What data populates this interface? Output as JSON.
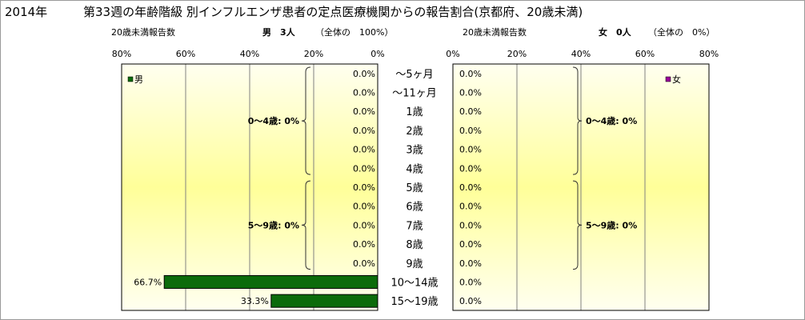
{
  "title": {
    "year": "2014年",
    "main": "第33週の年齢階級 別インフルエンザ患者の定点医療機関からの報告割合(京都府、20歳未満)"
  },
  "left_header": {
    "caption": "20歳未満報告数",
    "summary": "男　3人",
    "note": "（全体の　100%）"
  },
  "right_header": {
    "caption": "20歳未満報告数",
    "summary": "女　0人",
    "note": "（全体の　0%）"
  },
  "colors": {
    "male_bar": "#0b6b0b",
    "female_bar": "#990099",
    "gradient_edge": "#fffff0",
    "gradient_center": "#ffff99",
    "grid": "#808080",
    "axis": "#000000"
  },
  "chart_data": [
    {
      "type": "bar",
      "orientation": "horizontal",
      "direction": "right-to-left",
      "categories": [
        "〜5ヶ月",
        "〜11ヶ月",
        "1歳",
        "2歳",
        "3歳",
        "4歳",
        "5歳",
        "6歳",
        "7歳",
        "8歳",
        "9歳",
        "10〜14歳",
        "15〜19歳"
      ],
      "series": [
        {
          "name": "男",
          "values": [
            0,
            0,
            0,
            0,
            0,
            0,
            0,
            0,
            0,
            0,
            0,
            66.7,
            33.3
          ],
          "labels": [
            "0.0%",
            "0.0%",
            "0.0%",
            "0.0%",
            "0.0%",
            "0.0%",
            "0.0%",
            "0.0%",
            "0.0%",
            "0.0%",
            "0.0%",
            "66.7%",
            "33.3%"
          ]
        }
      ],
      "xlim": [
        0,
        80
      ],
      "ticks": [
        "80%",
        "60%",
        "40%",
        "20%",
        "0%"
      ],
      "grid": true,
      "legend": "top-left",
      "annotations": [
        {
          "text": "0〜4歳: 0%",
          "span": [
            "〜5ヶ月",
            "4歳"
          ]
        },
        {
          "text": "5〜9歳: 0%",
          "span": [
            "5歳",
            "9歳"
          ]
        }
      ]
    },
    {
      "type": "bar",
      "orientation": "horizontal",
      "direction": "left-to-right",
      "categories": [
        "〜5ヶ月",
        "〜11ヶ月",
        "1歳",
        "2歳",
        "3歳",
        "4歳",
        "5歳",
        "6歳",
        "7歳",
        "8歳",
        "9歳",
        "10〜14歳",
        "15〜19歳"
      ],
      "series": [
        {
          "name": "女",
          "values": [
            0,
            0,
            0,
            0,
            0,
            0,
            0,
            0,
            0,
            0,
            0,
            0,
            0
          ],
          "labels": [
            "0.0%",
            "0.0%",
            "0.0%",
            "0.0%",
            "0.0%",
            "0.0%",
            "0.0%",
            "0.0%",
            "0.0%",
            "0.0%",
            "0.0%",
            "0.0%",
            "0.0%"
          ]
        }
      ],
      "xlim": [
        0,
        80
      ],
      "ticks": [
        "0%",
        "20%",
        "40%",
        "60%",
        "80%"
      ],
      "grid": true,
      "legend": "top-right",
      "annotations": [
        {
          "text": "0〜4歳: 0%",
          "span": [
            "〜5ヶ月",
            "4歳"
          ]
        },
        {
          "text": "5〜9歳: 0%",
          "span": [
            "5歳",
            "9歳"
          ]
        }
      ]
    }
  ]
}
